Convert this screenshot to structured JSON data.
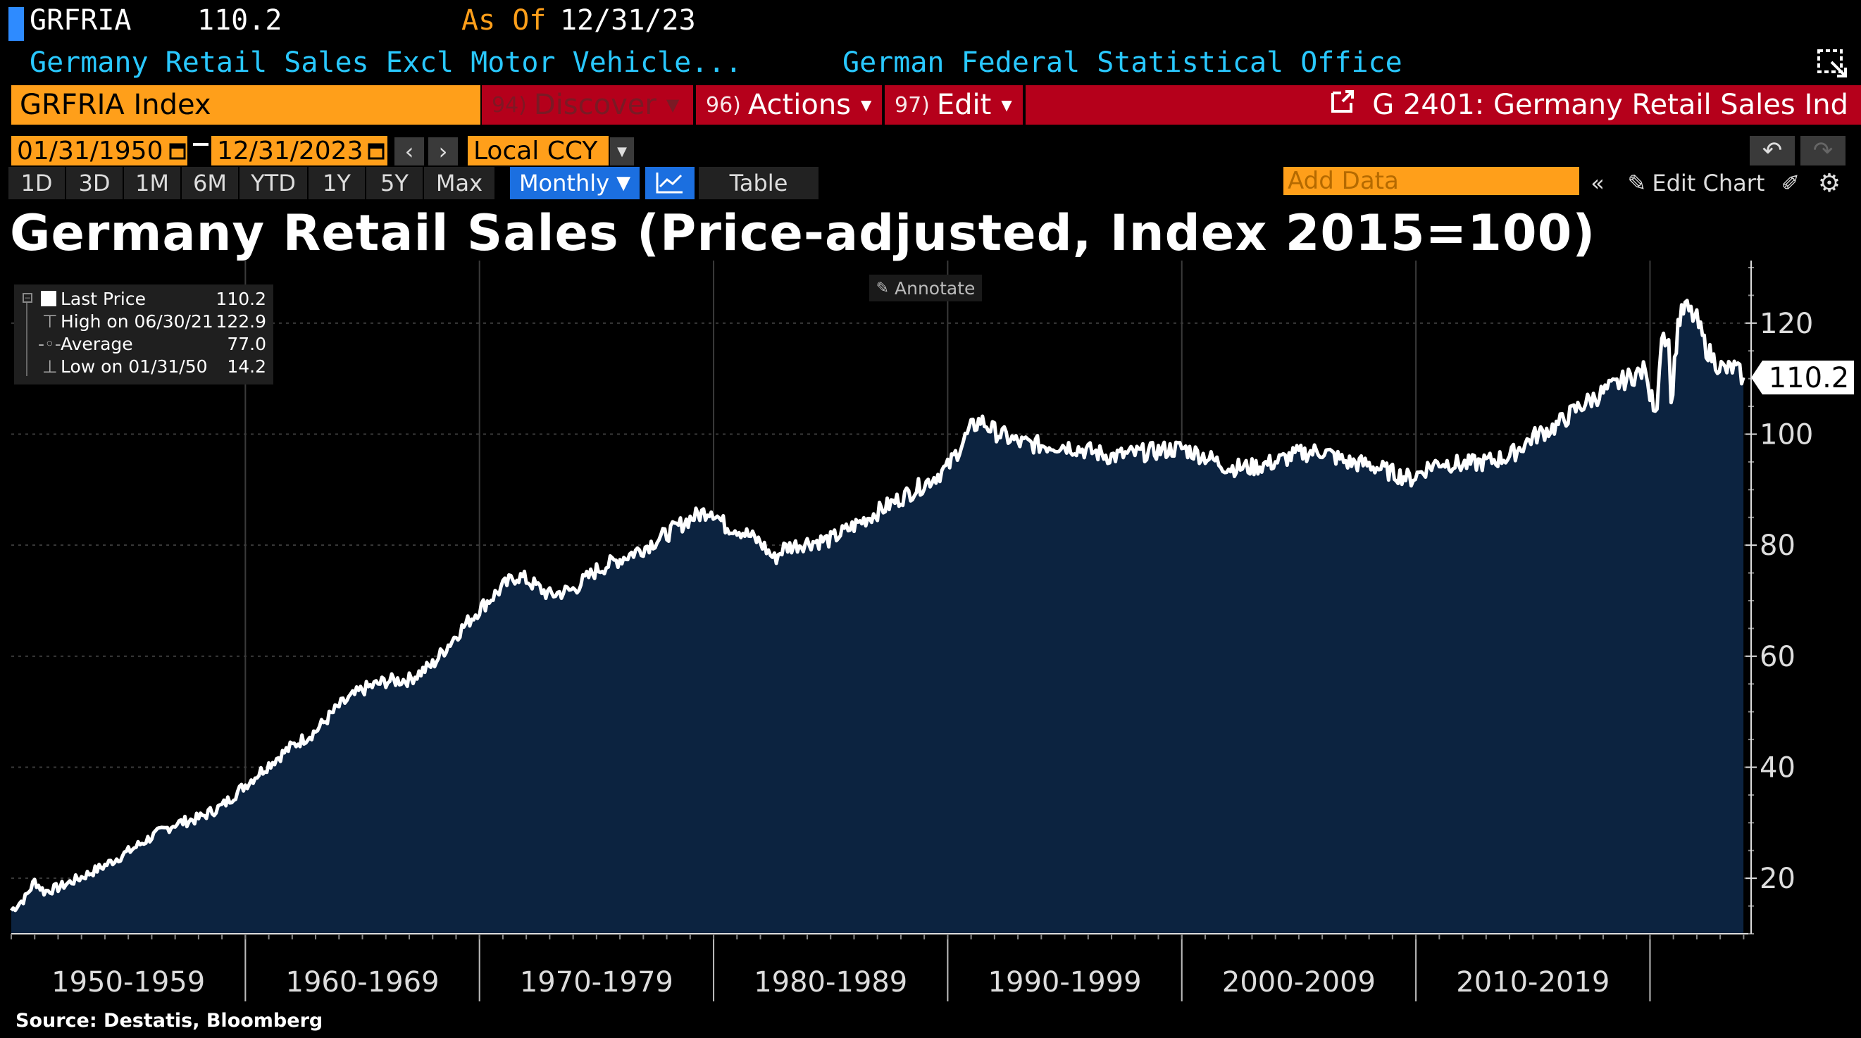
{
  "header": {
    "ticker": "GRFRIA",
    "last": "110.2",
    "as_of_label": "As Of",
    "as_of_date": "12/31/23",
    "description": "Germany Retail Sales Excl Motor Vehicle...",
    "source_org": "German Federal Statistical Office"
  },
  "command": {
    "security": "GRFRIA Index",
    "discover_num": "94)",
    "discover_label": "Discover",
    "actions_num": "96)",
    "actions_label": "Actions",
    "edit_num": "97)",
    "edit_label": "Edit",
    "chart_name": "G 2401: Germany Retail Sales Ind"
  },
  "range": {
    "start": "01/31/1950",
    "end": "12/31/2023",
    "currency": "Local CCY"
  },
  "periods": [
    "1D",
    "3D",
    "1M",
    "6M",
    "YTD",
    "1Y",
    "5Y",
    "Max"
  ],
  "frequency": "Monthly",
  "table_label": "Table",
  "add_data_placeholder": "Add Data",
  "edit_chart_label": "Edit Chart",
  "annotate_label": "Annotate",
  "legend": {
    "rows": [
      {
        "name": "Last Price",
        "value": "110.2"
      },
      {
        "name": "High on 06/30/21",
        "value": "122.9"
      },
      {
        "name": "Average",
        "value": "77.0"
      },
      {
        "name": "Low on 01/31/50",
        "value": "14.2"
      }
    ]
  },
  "source": "Source: Destatis, Bloomberg",
  "colors": {
    "fill": "#0c2340",
    "line": "#ffffff",
    "amber": "#ff9f1a",
    "red": "#b5001b",
    "cyan": "#29c8ff"
  },
  "chart_data": {
    "type": "area",
    "title": "Germany Retail Sales (Price-adjusted, Index 2015=100)",
    "xlabel": "",
    "ylabel": "",
    "x_tick_labels": [
      "1950-1959",
      "1960-1969",
      "1970-1979",
      "1980-1989",
      "1990-1999",
      "2000-2009",
      "2010-2019"
    ],
    "x_range": [
      1950,
      2024.5
    ],
    "y_ticks": [
      20,
      40,
      60,
      80,
      100,
      120
    ],
    "ylim": [
      10,
      130
    ],
    "last_value_label": "110.2",
    "grid": true,
    "series": [
      {
        "values": [
          {
            "x": 1950.0,
            "y": 14.2
          },
          {
            "x": 1950.6,
            "y": 16.5
          },
          {
            "x": 1951.0,
            "y": 19.5
          },
          {
            "x": 1951.4,
            "y": 17.6
          },
          {
            "x": 1952.0,
            "y": 18.3
          },
          {
            "x": 1953.0,
            "y": 20.2
          },
          {
            "x": 1954.0,
            "y": 22.3
          },
          {
            "x": 1955.0,
            "y": 24.8
          },
          {
            "x": 1956.0,
            "y": 27.5
          },
          {
            "x": 1957.0,
            "y": 29.8
          },
          {
            "x": 1958.0,
            "y": 30.8
          },
          {
            "x": 1959.0,
            "y": 33.0
          },
          {
            "x": 1960.0,
            "y": 36.8
          },
          {
            "x": 1961.0,
            "y": 40.5
          },
          {
            "x": 1962.0,
            "y": 43.8
          },
          {
            "x": 1963.0,
            "y": 46.5
          },
          {
            "x": 1964.0,
            "y": 51.0
          },
          {
            "x": 1965.0,
            "y": 54.0
          },
          {
            "x": 1966.0,
            "y": 55.5
          },
          {
            "x": 1967.0,
            "y": 55.8
          },
          {
            "x": 1968.0,
            "y": 58.5
          },
          {
            "x": 1969.0,
            "y": 63.8
          },
          {
            "x": 1970.0,
            "y": 68.5
          },
          {
            "x": 1971.0,
            "y": 72.5
          },
          {
            "x": 1971.6,
            "y": 74.5
          },
          {
            "x": 1972.0,
            "y": 73.8
          },
          {
            "x": 1973.0,
            "y": 71.0
          },
          {
            "x": 1974.0,
            "y": 72.0
          },
          {
            "x": 1975.0,
            "y": 75.5
          },
          {
            "x": 1976.0,
            "y": 77.5
          },
          {
            "x": 1977.0,
            "y": 79.5
          },
          {
            "x": 1978.0,
            "y": 82.0
          },
          {
            "x": 1979.0,
            "y": 84.8
          },
          {
            "x": 1979.9,
            "y": 86.5
          },
          {
            "x": 1980.5,
            "y": 83.5
          },
          {
            "x": 1981.0,
            "y": 83.0
          },
          {
            "x": 1982.0,
            "y": 80.5
          },
          {
            "x": 1982.6,
            "y": 77.5
          },
          {
            "x": 1983.0,
            "y": 79.5
          },
          {
            "x": 1984.0,
            "y": 80.5
          },
          {
            "x": 1985.0,
            "y": 81.0
          },
          {
            "x": 1986.0,
            "y": 83.5
          },
          {
            "x": 1987.0,
            "y": 86.0
          },
          {
            "x": 1988.0,
            "y": 88.5
          },
          {
            "x": 1989.0,
            "y": 91.0
          },
          {
            "x": 1990.0,
            "y": 94.0
          },
          {
            "x": 1991.0,
            "y": 101.0
          },
          {
            "x": 1991.4,
            "y": 102.5
          },
          {
            "x": 1992.0,
            "y": 100.5
          },
          {
            "x": 1993.0,
            "y": 98.5
          },
          {
            "x": 1994.0,
            "y": 98.0
          },
          {
            "x": 1995.0,
            "y": 98.0
          },
          {
            "x": 1996.0,
            "y": 97.0
          },
          {
            "x": 1997.0,
            "y": 96.0
          },
          {
            "x": 1998.0,
            "y": 96.5
          },
          {
            "x": 1999.0,
            "y": 97.0
          },
          {
            "x": 2000.0,
            "y": 97.5
          },
          {
            "x": 2001.0,
            "y": 96.0
          },
          {
            "x": 2002.0,
            "y": 94.0
          },
          {
            "x": 2003.0,
            "y": 94.0
          },
          {
            "x": 2004.0,
            "y": 95.0
          },
          {
            "x": 2005.0,
            "y": 96.5
          },
          {
            "x": 2006.0,
            "y": 97.0
          },
          {
            "x": 2007.0,
            "y": 95.0
          },
          {
            "x": 2008.0,
            "y": 94.5
          },
          {
            "x": 2009.0,
            "y": 93.0
          },
          {
            "x": 2009.8,
            "y": 92.0
          },
          {
            "x": 2010.5,
            "y": 94.0
          },
          {
            "x": 2011.0,
            "y": 95.0
          },
          {
            "x": 2012.0,
            "y": 94.5
          },
          {
            "x": 2013.0,
            "y": 95.0
          },
          {
            "x": 2014.0,
            "y": 96.0
          },
          {
            "x": 2015.0,
            "y": 99.5
          },
          {
            "x": 2016.0,
            "y": 101.5
          },
          {
            "x": 2017.0,
            "y": 105.0
          },
          {
            "x": 2018.0,
            "y": 107.5
          },
          {
            "x": 2019.0,
            "y": 110.0
          },
          {
            "x": 2019.8,
            "y": 111.5
          },
          {
            "x": 2020.0,
            "y": 107.0
          },
          {
            "x": 2020.3,
            "y": 104.5
          },
          {
            "x": 2020.5,
            "y": 118.5
          },
          {
            "x": 2020.8,
            "y": 117.0
          },
          {
            "x": 2020.9,
            "y": 105.0
          },
          {
            "x": 2021.2,
            "y": 120.0
          },
          {
            "x": 2021.5,
            "y": 122.9
          },
          {
            "x": 2022.0,
            "y": 120.5
          },
          {
            "x": 2022.4,
            "y": 115.5
          },
          {
            "x": 2022.8,
            "y": 113.0
          },
          {
            "x": 2023.2,
            "y": 111.5
          },
          {
            "x": 2023.6,
            "y": 112.0
          },
          {
            "x": 2023.99,
            "y": 110.2
          }
        ]
      }
    ]
  }
}
